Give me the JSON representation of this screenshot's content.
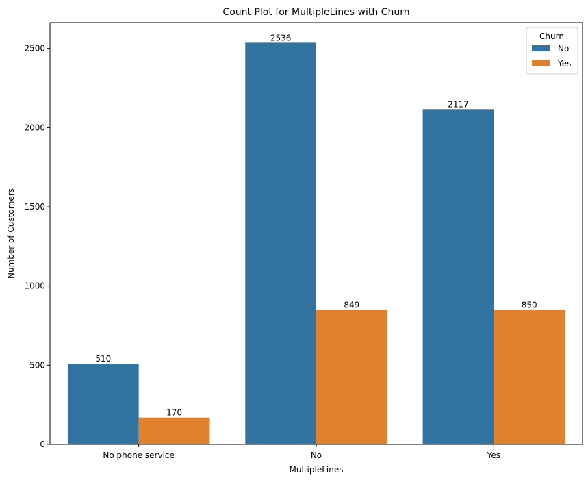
{
  "chart_data": {
    "type": "bar",
    "title": "Count Plot for MultipleLines with Churn",
    "xlabel": "MultipleLines",
    "ylabel": "Number of Customers",
    "categories": [
      "No phone service",
      "No",
      "Yes"
    ],
    "series": [
      {
        "name": "No",
        "color": "#3274a1",
        "values": [
          510,
          2536,
          2117
        ]
      },
      {
        "name": "Yes",
        "color": "#e1812c",
        "values": [
          170,
          849,
          850
        ]
      }
    ],
    "ylim": [
      0,
      2663
    ],
    "yticks": [
      0,
      500,
      1000,
      1500,
      2000,
      2500
    ],
    "grid": false,
    "legend": {
      "title": "Churn",
      "placement": "top-right"
    }
  }
}
